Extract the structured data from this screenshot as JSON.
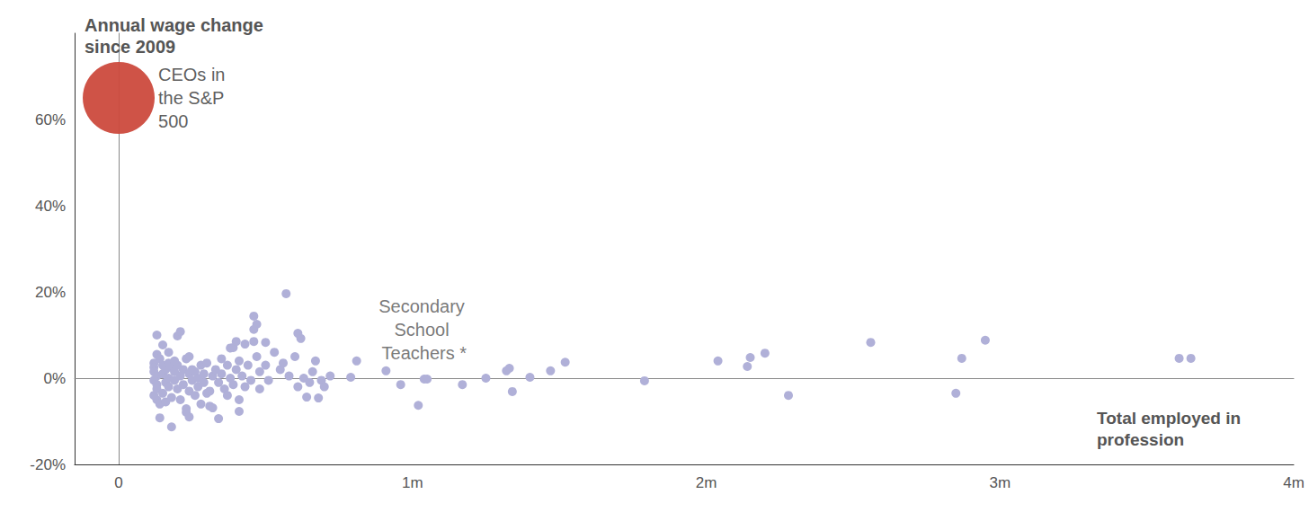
{
  "chart_data": {
    "type": "scatter",
    "title": "Annual wage change since 2009",
    "x_label": "Total employed in profession",
    "xlim": [
      -0.15,
      4
    ],
    "xticks": [
      0,
      {
        "value": 1,
        "label": "1m"
      },
      {
        "value": 2,
        "label": "2m"
      },
      {
        "value": 3,
        "label": "3m"
      },
      {
        "value": 4,
        "label": "4m"
      }
    ],
    "ylim": [
      -20,
      80
    ],
    "yticks": [
      {
        "value": -20,
        "label": "-20%"
      },
      {
        "value": 0,
        "label": "0%"
      },
      {
        "value": 20,
        "label": "20%"
      },
      {
        "value": 40,
        "label": "40%"
      },
      {
        "value": 60,
        "label": "60%"
      }
    ],
    "grid": false,
    "series": [
      {
        "name": "CEOs in the S&P 500",
        "color": "#cc4a3d",
        "marker": "bubble",
        "x": [
          0
        ],
        "values": [
          65
        ]
      },
      {
        "color": "#b0b0d8",
        "marker": "circle",
        "x": [
          0.12,
          0.12,
          0.12,
          0.13,
          0.12,
          0.13,
          0.13,
          0.12,
          0.13,
          0.14,
          0.14,
          0.13,
          0.13,
          0.14,
          0.15,
          0.15,
          0.15,
          0.15,
          0.16,
          0.16,
          0.16,
          0.17,
          0.17,
          0.17,
          0.17,
          0.18,
          0.18,
          0.18,
          0.19,
          0.19,
          0.19,
          0.2,
          0.21,
          0.2,
          0.2,
          0.21,
          0.21,
          0.22,
          0.22,
          0.23,
          0.23,
          0.23,
          0.24,
          0.24,
          0.24,
          0.24,
          0.25,
          0.25,
          0.26,
          0.26,
          0.27,
          0.27,
          0.28,
          0.28,
          0.29,
          0.29,
          0.3,
          0.3,
          0.31,
          0.31,
          0.32,
          0.32,
          0.33,
          0.34,
          0.34,
          0.35,
          0.35,
          0.36,
          0.37,
          0.37,
          0.38,
          0.38,
          0.39,
          0.4,
          0.39,
          0.4,
          0.41,
          0.41,
          0.41,
          0.42,
          0.43,
          0.43,
          0.44,
          0.45,
          0.46,
          0.47,
          0.46,
          0.46,
          0.47,
          0.48,
          0.48,
          0.5,
          0.5,
          0.51,
          0.53,
          0.55,
          0.57,
          0.56,
          0.58,
          0.6,
          0.61,
          0.62,
          0.61,
          0.63,
          0.64,
          0.65,
          0.66,
          0.67,
          0.68,
          0.69,
          0.7,
          0.72,
          0.79,
          0.81,
          0.91,
          0.96,
          1.02,
          1.04,
          1.05,
          1.17,
          1.25,
          1.32,
          1.33,
          1.34,
          1.4,
          1.47,
          1.52,
          1.79,
          2.04,
          2.14,
          2.15,
          2.2,
          2.28,
          2.56,
          2.85,
          2.87,
          2.95,
          3.61,
          3.65
        ],
        "values": [
          3.5,
          2.5,
          1.5,
          0.5,
          -0.5,
          -1.5,
          -2.5,
          -4,
          -5,
          -6,
          -9.2,
          10,
          5.5,
          4.5,
          3,
          7.7,
          1,
          -3.5,
          2,
          -1,
          -5.5,
          6,
          3.5,
          0,
          -2,
          -11.3,
          2.5,
          -4.5,
          4,
          1.5,
          -0.5,
          9.8,
          10.8,
          3,
          -2.5,
          0.5,
          -5,
          2,
          -1.5,
          -7.9,
          -7.1,
          4.5,
          5,
          -9,
          1,
          -3,
          2,
          -0.5,
          -4,
          1.5,
          0,
          -2,
          -6,
          3,
          1,
          -1,
          -3.5,
          3.5,
          -3,
          -6.5,
          -6.9,
          0.5,
          2,
          -9.4,
          -1,
          4.5,
          1,
          -2.5,
          -4,
          3,
          7,
          0,
          7.1,
          8.5,
          -1.5,
          2,
          -7.7,
          -5,
          4,
          0.5,
          7.9,
          -2,
          3,
          -0.5,
          14.4,
          12.5,
          11.3,
          8.5,
          5,
          -2.5,
          1.5,
          8.3,
          3,
          -0.5,
          6,
          2,
          19.6,
          3.5,
          0.5,
          5,
          10.4,
          9.2,
          -2,
          0,
          -4.4,
          -1,
          1.5,
          4,
          -4.6,
          -0.5,
          -2,
          0.5,
          0.2,
          4,
          1.7,
          -1.5,
          -6.3,
          -0.2,
          -0.2,
          -1.5,
          0,
          1.7,
          2.3,
          -3.1,
          0.2,
          1.7,
          3.7,
          -0.6,
          4,
          2.7,
          4.8,
          5.8,
          -4,
          8.3,
          -3.5,
          4.6,
          8.8,
          4.6,
          4.6
        ]
      }
    ],
    "annotations": [
      {
        "text": "Secondary School Teachers *",
        "x": 1.04,
        "y": -0.2
      }
    ]
  }
}
